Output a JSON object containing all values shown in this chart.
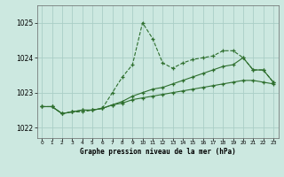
{
  "xlabel": "Graphe pression niveau de la mer (hPa)",
  "background_color": "#cce8e0",
  "grid_color": "#aacec6",
  "line_color": "#2d6e2d",
  "xlim": [
    -0.5,
    23.5
  ],
  "ylim": [
    1021.7,
    1025.5
  ],
  "yticks": [
    1022,
    1023,
    1024,
    1025
  ],
  "xticks": [
    0,
    1,
    2,
    3,
    4,
    5,
    6,
    7,
    8,
    9,
    10,
    11,
    12,
    13,
    14,
    15,
    16,
    17,
    18,
    19,
    20,
    21,
    22,
    23
  ],
  "series1_x": [
    0,
    1,
    2,
    3,
    4,
    5,
    6,
    7,
    8,
    9,
    10,
    11,
    12,
    13,
    14,
    15,
    16,
    17,
    18,
    19,
    20,
    21,
    22,
    23
  ],
  "series1_y": [
    1022.6,
    1022.6,
    1022.4,
    1022.45,
    1022.45,
    1022.5,
    1022.55,
    1023.0,
    1023.45,
    1023.8,
    1025.0,
    1024.55,
    1023.85,
    1023.7,
    1023.85,
    1023.95,
    1024.0,
    1024.05,
    1024.2,
    1024.2,
    1024.0,
    1023.65,
    1023.65,
    1023.3
  ],
  "series1_style": "--",
  "series2_x": [
    0,
    1,
    2,
    3,
    4,
    5,
    6,
    7,
    8,
    9,
    10,
    11,
    12,
    13,
    14,
    15,
    16,
    17,
    18,
    19,
    20,
    21,
    22,
    23
  ],
  "series2_y": [
    1022.6,
    1022.6,
    1022.4,
    1022.45,
    1022.5,
    1022.5,
    1022.55,
    1022.65,
    1022.75,
    1022.9,
    1023.0,
    1023.1,
    1023.15,
    1023.25,
    1023.35,
    1023.45,
    1023.55,
    1023.65,
    1023.75,
    1023.8,
    1024.0,
    1023.65,
    1023.65,
    1023.3
  ],
  "series2_style": "-",
  "series3_x": [
    0,
    1,
    2,
    3,
    4,
    5,
    6,
    7,
    8,
    9,
    10,
    11,
    12,
    13,
    14,
    15,
    16,
    17,
    18,
    19,
    20,
    21,
    22,
    23
  ],
  "series3_y": [
    1022.6,
    1022.6,
    1022.4,
    1022.45,
    1022.5,
    1022.5,
    1022.55,
    1022.65,
    1022.7,
    1022.8,
    1022.85,
    1022.9,
    1022.95,
    1023.0,
    1023.05,
    1023.1,
    1023.15,
    1023.2,
    1023.25,
    1023.3,
    1023.35,
    1023.35,
    1023.3,
    1023.25
  ],
  "series3_style": "-"
}
